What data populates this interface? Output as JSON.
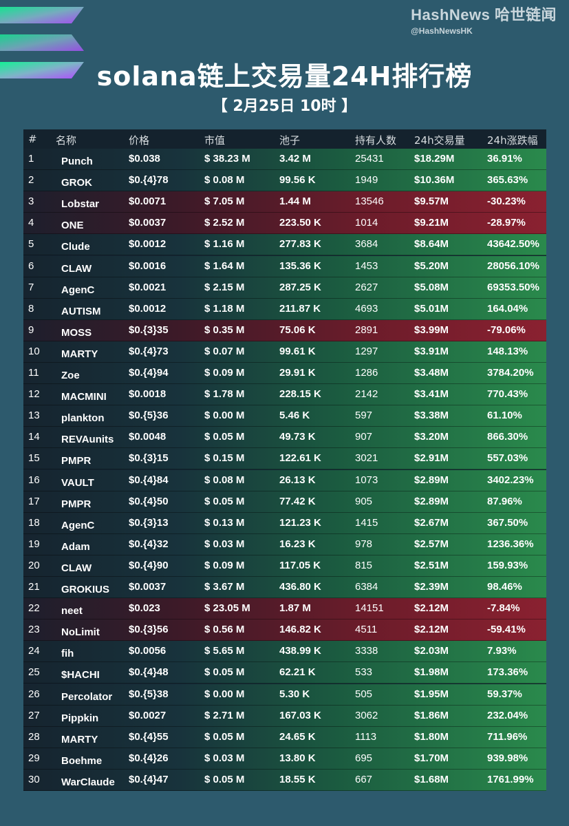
{
  "brand": {
    "name": "HashNews 哈世链闻",
    "handle": "@HashNewsHK"
  },
  "title": "solana链上交易量24H排行榜",
  "subtitle": "【 2月25日  10时 】",
  "colors": {
    "background": "#2d5a6d",
    "up_row": "#2a8a4c",
    "down_row": "#8a2130",
    "solana_teal": "#14f195",
    "solana_purple": "#9945ff"
  },
  "icons": {
    "logo": "solana-logo-icon"
  },
  "headers": [
    "#",
    "名称",
    "价格",
    "市值",
    "池子",
    "持有人数",
    "24h交易量",
    "24h涨跌幅"
  ],
  "rows": [
    {
      "rank": "1",
      "name": "Punch",
      "price": "$0.038",
      "mcap": "$ 38.23 M",
      "pool": "3.42 M",
      "holders": "25431",
      "vol": "$18.29M",
      "chg": "36.91%",
      "trend": "up"
    },
    {
      "rank": "2",
      "name": "GROK",
      "price": "$0.{4}78",
      "mcap": "$ 0.08 M",
      "pool": "99.56 K",
      "holders": "1949",
      "vol": "$10.36M",
      "chg": "365.63%",
      "trend": "up"
    },
    {
      "rank": "3",
      "name": "Lobstar",
      "price": "$0.0071",
      "mcap": "$ 7.05 M",
      "pool": "1.44 M",
      "holders": "13546",
      "vol": "$9.57M",
      "chg": "-30.23%",
      "trend": "down"
    },
    {
      "rank": "4",
      "name": "ONE",
      "price": "$0.0037",
      "mcap": "$ 2.52 M",
      "pool": "223.50 K",
      "holders": "1014",
      "vol": "$9.21M",
      "chg": "-28.97%",
      "trend": "down"
    },
    {
      "rank": "5",
      "name": "Clude",
      "price": "$0.0012",
      "mcap": "$ 1.16 M",
      "pool": "277.83 K",
      "holders": "3684",
      "vol": "$8.64M",
      "chg": "43642.50%",
      "trend": "up"
    },
    {
      "rank": "6",
      "name": "CLAW",
      "price": "$0.0016",
      "mcap": "$ 1.64 M",
      "pool": "135.36 K",
      "holders": "1453",
      "vol": "$5.20M",
      "chg": "28056.10%",
      "trend": "up"
    },
    {
      "rank": "7",
      "name": "AgenC",
      "price": "$0.0021",
      "mcap": "$ 2.15 M",
      "pool": "287.25 K",
      "holders": "2627",
      "vol": "$5.08M",
      "chg": "69353.50%",
      "trend": "up"
    },
    {
      "rank": "8",
      "name": "AUTISM",
      "price": "$0.0012",
      "mcap": "$ 1.18 M",
      "pool": "211.87 K",
      "holders": "4693",
      "vol": "$5.01M",
      "chg": "164.04%",
      "trend": "up"
    },
    {
      "rank": "9",
      "name": "MOSS",
      "price": "$0.{3}35",
      "mcap": "$ 0.35 M",
      "pool": "75.06 K",
      "holders": "2891",
      "vol": "$3.99M",
      "chg": "-79.06%",
      "trend": "down"
    },
    {
      "rank": "10",
      "name": "MARTY",
      "price": "$0.{4}73",
      "mcap": "$ 0.07 M",
      "pool": "99.61 K",
      "holders": "1297",
      "vol": "$3.91M",
      "chg": "148.13%",
      "trend": "up"
    },
    {
      "rank": "11",
      "name": "Zoe",
      "price": "$0.{4}94",
      "mcap": "$ 0.09 M",
      "pool": "29.91 K",
      "holders": "1286",
      "vol": "$3.48M",
      "chg": "3784.20%",
      "trend": "up"
    },
    {
      "rank": "12",
      "name": "MACMINI",
      "price": "$0.0018",
      "mcap": "$ 1.78 M",
      "pool": "228.15 K",
      "holders": "2142",
      "vol": "$3.41M",
      "chg": "770.43%",
      "trend": "up"
    },
    {
      "rank": "13",
      "name": "plankton",
      "price": "$0.{5}36",
      "mcap": "$ 0.00 M",
      "pool": "5.46 K",
      "holders": "597",
      "vol": "$3.38M",
      "chg": "61.10%",
      "trend": "up"
    },
    {
      "rank": "14",
      "name": "REVAunits",
      "price": "$0.0048",
      "mcap": "$ 0.05 M",
      "pool": "49.73 K",
      "holders": "907",
      "vol": "$3.20M",
      "chg": "866.30%",
      "trend": "up"
    },
    {
      "rank": "15",
      "name": "PMPR",
      "price": "$0.{3}15",
      "mcap": "$ 0.15 M",
      "pool": "122.61 K",
      "holders": "3021",
      "vol": "$2.91M",
      "chg": "557.03%",
      "trend": "up"
    },
    {
      "rank": "16",
      "name": "VAULT",
      "price": "$0.{4}84",
      "mcap": "$ 0.08 M",
      "pool": "26.13 K",
      "holders": "1073",
      "vol": "$2.89M",
      "chg": "3402.23%",
      "trend": "up"
    },
    {
      "rank": "17",
      "name": "PMPR",
      "price": "$0.{4}50",
      "mcap": "$ 0.05 M",
      "pool": "77.42 K",
      "holders": "905",
      "vol": "$2.89M",
      "chg": "87.96%",
      "trend": "up"
    },
    {
      "rank": "18",
      "name": "AgenC",
      "price": "$0.{3}13",
      "mcap": "$ 0.13 M",
      "pool": "121.23 K",
      "holders": "1415",
      "vol": "$2.67M",
      "chg": "367.50%",
      "trend": "up"
    },
    {
      "rank": "19",
      "name": "Adam",
      "price": "$0.{4}32",
      "mcap": "$ 0.03 M",
      "pool": "16.23 K",
      "holders": "978",
      "vol": "$2.57M",
      "chg": "1236.36%",
      "trend": "up"
    },
    {
      "rank": "20",
      "name": "CLAW",
      "price": "$0.{4}90",
      "mcap": "$ 0.09 M",
      "pool": "117.05 K",
      "holders": "815",
      "vol": "$2.51M",
      "chg": "159.93%",
      "trend": "up"
    },
    {
      "rank": "21",
      "name": "GROKIUS",
      "price": "$0.0037",
      "mcap": "$ 3.67 M",
      "pool": "436.80 K",
      "holders": "6384",
      "vol": "$2.39M",
      "chg": "98.46%",
      "trend": "up"
    },
    {
      "rank": "22",
      "name": "neet",
      "price": "$0.023",
      "mcap": "$ 23.05 M",
      "pool": "1.87 M",
      "holders": "14151",
      "vol": "$2.12M",
      "chg": "-7.84%",
      "trend": "down"
    },
    {
      "rank": "23",
      "name": "NoLimit",
      "price": "$0.{3}56",
      "mcap": "$ 0.56 M",
      "pool": "146.82 K",
      "holders": "4511",
      "vol": "$2.12M",
      "chg": "-59.41%",
      "trend": "down"
    },
    {
      "rank": "24",
      "name": "fih",
      "price": "$0.0056",
      "mcap": "$ 5.65 M",
      "pool": "438.99 K",
      "holders": "3338",
      "vol": "$2.03M",
      "chg": "7.93%",
      "trend": "up"
    },
    {
      "rank": "25",
      "name": "$HACHI",
      "price": "$0.{4}48",
      "mcap": "$ 0.05 M",
      "pool": "62.21 K",
      "holders": "533",
      "vol": "$1.98M",
      "chg": "173.36%",
      "trend": "up"
    },
    {
      "rank": "26",
      "name": "Percolator",
      "price": "$0.{5}38",
      "mcap": "$ 0.00 M",
      "pool": "5.30 K",
      "holders": "505",
      "vol": "$1.95M",
      "chg": "59.37%",
      "trend": "up"
    },
    {
      "rank": "27",
      "name": "Pippkin",
      "price": "$0.0027",
      "mcap": "$ 2.71 M",
      "pool": "167.03 K",
      "holders": "3062",
      "vol": "$1.86M",
      "chg": "232.04%",
      "trend": "up"
    },
    {
      "rank": "28",
      "name": "MARTY",
      "price": "$0.{4}55",
      "mcap": "$ 0.05 M",
      "pool": "24.65 K",
      "holders": "1113",
      "vol": "$1.80M",
      "chg": "711.96%",
      "trend": "up"
    },
    {
      "rank": "29",
      "name": "Boehme",
      "price": "$0.{4}26",
      "mcap": "$ 0.03 M",
      "pool": "13.80 K",
      "holders": "695",
      "vol": "$1.70M",
      "chg": "939.98%",
      "trend": "up"
    },
    {
      "rank": "30",
      "name": "WarClaude",
      "price": "$0.{4}47",
      "mcap": "$ 0.05 M",
      "pool": "18.55 K",
      "holders": "667",
      "vol": "$1.68M",
      "chg": "1761.99%",
      "trend": "up"
    }
  ]
}
